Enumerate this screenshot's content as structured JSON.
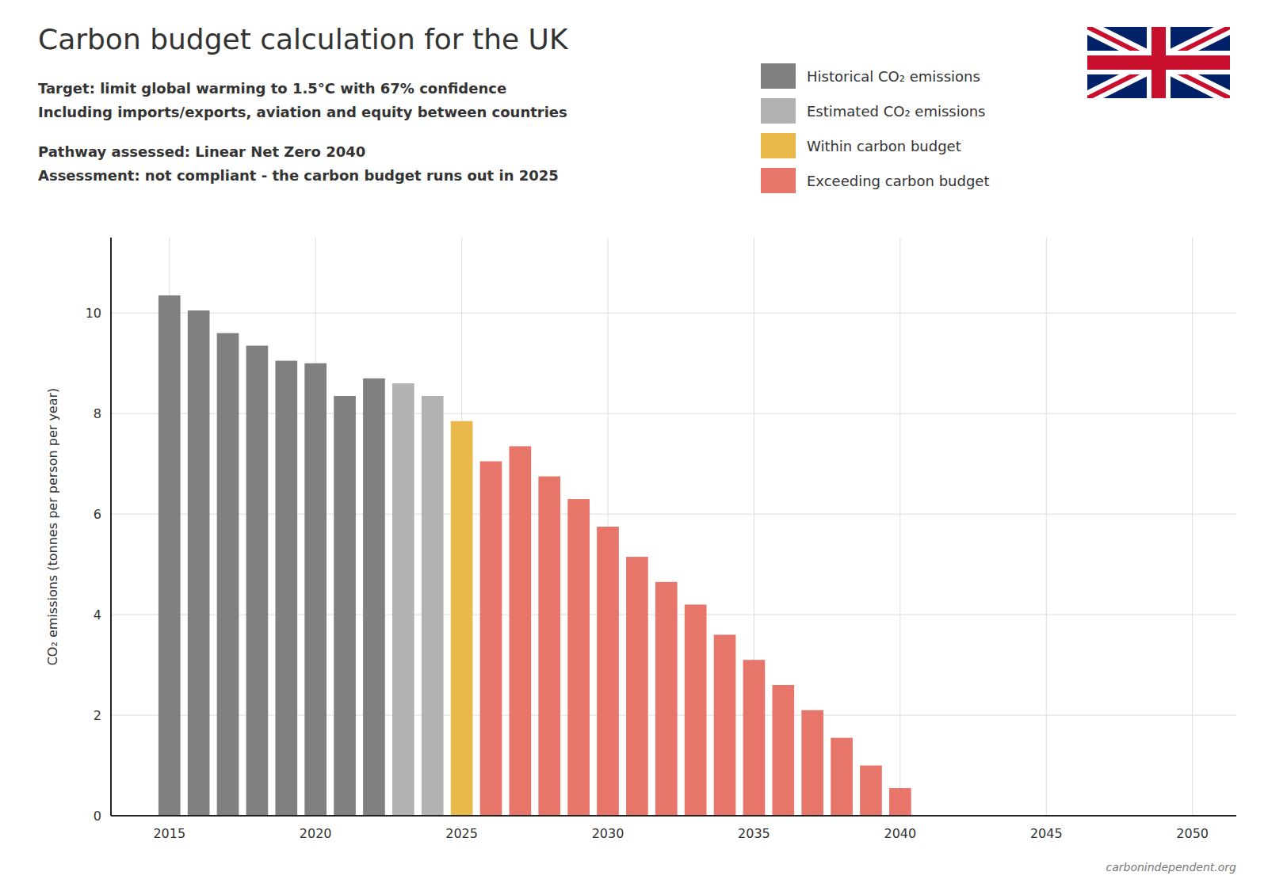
{
  "chart_data": {
    "type": "bar",
    "title": "Carbon budget calculation for the UK",
    "subtitle": [
      "Target: limit global warming to 1.5°C with 67% confidence",
      "Including imports/exports, aviation and equity between countries"
    ],
    "annotations": [
      "Pathway assessed:  Linear Net Zero 2040",
      "Assessment: not compliant - the carbon budget runs out in 2025",
      "carbonindependent.org"
    ],
    "y_label": "CO₂ emissions (tonnes per person per year)",
    "x": [
      2015,
      2016,
      2017,
      2018,
      2019,
      2020,
      2021,
      2022,
      2023,
      2024,
      2025,
      2026,
      2027,
      2028,
      2029,
      2030,
      2031,
      2032,
      2033,
      2034,
      2035,
      2036,
      2037,
      2038,
      2039,
      2040
    ],
    "series": [
      {
        "name": "Historical CO₂ emissions",
        "color": "#808080",
        "values": [
          10.35,
          10.05,
          9.6,
          9.35,
          9.05,
          9.0,
          8.35,
          8.7,
          null,
          null,
          null,
          null,
          null,
          null,
          null,
          null,
          null,
          null,
          null,
          null,
          null,
          null,
          null,
          null,
          null,
          null
        ]
      },
      {
        "name": "Estimated CO₂ emissions",
        "color": "#b2b2b2",
        "values": [
          null,
          null,
          null,
          null,
          null,
          null,
          null,
          null,
          8.6,
          8.35,
          null,
          null,
          null,
          null,
          null,
          null,
          null,
          null,
          null,
          null,
          null,
          null,
          null,
          null,
          null,
          null
        ]
      },
      {
        "name": "Within carbon budget",
        "color": "#e8b84b",
        "values": [
          null,
          null,
          null,
          null,
          null,
          null,
          null,
          null,
          null,
          null,
          7.85,
          null,
          null,
          null,
          null,
          null,
          null,
          null,
          null,
          null,
          null,
          null,
          null,
          null,
          null,
          null
        ]
      },
      {
        "name": "Exceeding carbon budget",
        "color": "#e8756a",
        "values": [
          null,
          null,
          null,
          null,
          null,
          null,
          null,
          null,
          null,
          null,
          null,
          7.05,
          7.35,
          6.75,
          6.3,
          5.75,
          5.15,
          4.65,
          4.2,
          3.6,
          3.1,
          2.6,
          2.1,
          1.55,
          1.0,
          0.55
        ]
      }
    ],
    "xlim": [
      2013.0,
      2051.5
    ],
    "ylim": [
      0,
      11.5
    ],
    "xticks": [
      2015,
      2020,
      2025,
      2030,
      2035,
      2040,
      2045,
      2050
    ],
    "yticks": [
      0,
      2,
      4,
      6,
      8,
      10
    ],
    "grid": true,
    "legend": "upper right"
  }
}
